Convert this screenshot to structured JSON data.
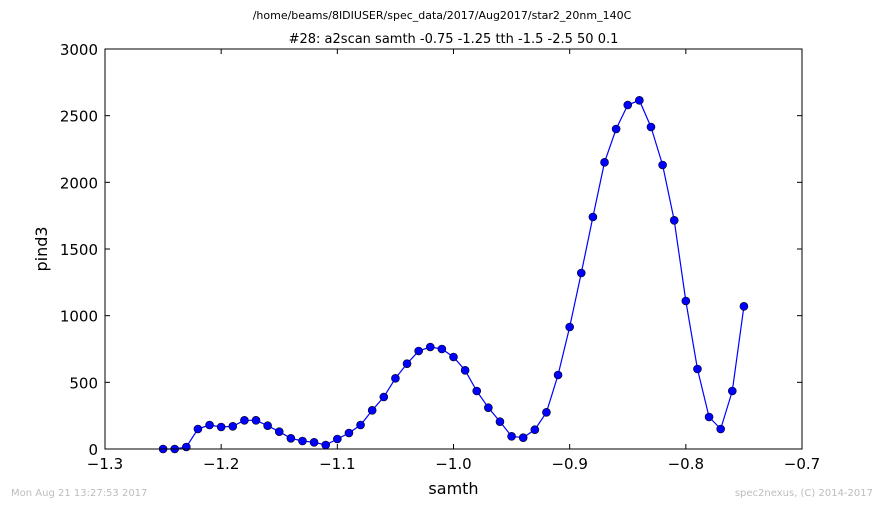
{
  "figure": {
    "suptitle": "/home/beams/8IDIUSER/spec_data/2017/Aug2017/star2_20nm_140C",
    "timestamp": "Mon Aug 21 13:27:53 2017",
    "credit": "spec2nexus, (C) 2014-2017"
  },
  "chart_data": {
    "type": "line",
    "title": "#28: a2scan  samth -0.75 -1.25  tth -1.5 -2.5  50 0.1",
    "xlabel": "samth",
    "ylabel": "pind3",
    "xlim": [
      -1.3,
      -0.7
    ],
    "ylim": [
      0,
      3000
    ],
    "xticks": [
      -1.3,
      -1.2,
      -1.1,
      -1.0,
      -0.9,
      -0.8,
      -0.7
    ],
    "xtick_labels": [
      "−1.3",
      "−1.2",
      "−1.1",
      "−1.0",
      "−0.9",
      "−0.8",
      "−0.7"
    ],
    "yticks": [
      0,
      500,
      1000,
      1500,
      2000,
      2500,
      3000
    ],
    "ytick_labels": [
      "0",
      "500",
      "1000",
      "1500",
      "2000",
      "2500",
      "3000"
    ],
    "grid": false,
    "legend": false,
    "series": [
      {
        "color": "#0000ff",
        "marker": "circle",
        "x": [
          -1.25,
          -1.24,
          -1.23,
          -1.22,
          -1.21,
          -1.2,
          -1.19,
          -1.18,
          -1.17,
          -1.16,
          -1.15,
          -1.14,
          -1.13,
          -1.12,
          -1.11,
          -1.1,
          -1.09,
          -1.08,
          -1.07,
          -1.06,
          -1.05,
          -1.04,
          -1.03,
          -1.02,
          -1.01,
          -1.0,
          -0.99,
          -0.98,
          -0.97,
          -0.96,
          -0.95,
          -0.94,
          -0.93,
          -0.92,
          -0.91,
          -0.9,
          -0.89,
          -0.88,
          -0.87,
          -0.86,
          -0.85,
          -0.84,
          -0.83,
          -0.82,
          -0.81,
          -0.8,
          -0.79,
          -0.78,
          -0.77,
          -0.76,
          -0.75
        ],
        "y": [
          0,
          0,
          15,
          150,
          180,
          165,
          170,
          215,
          215,
          175,
          130,
          80,
          60,
          50,
          30,
          75,
          120,
          180,
          290,
          390,
          530,
          640,
          735,
          765,
          750,
          690,
          590,
          435,
          310,
          205,
          95,
          85,
          145,
          275,
          555,
          915,
          1320,
          1740,
          2150,
          2400,
          2580,
          2615,
          2415,
          2130,
          1715,
          1110,
          600,
          240,
          150,
          435,
          1070
        ]
      }
    ]
  }
}
